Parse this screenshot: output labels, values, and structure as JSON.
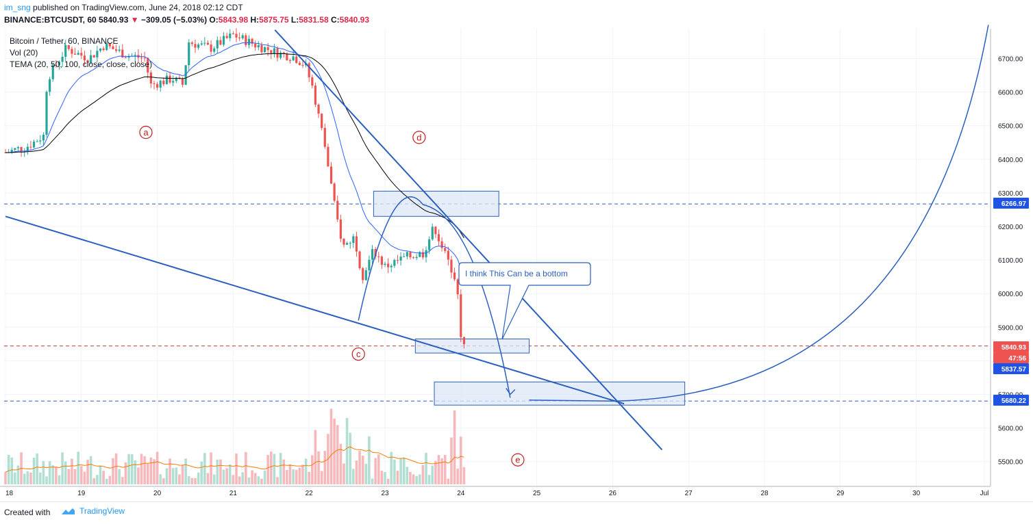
{
  "header": {
    "author": "im_sng",
    "published_text": "published on TradingView.com, June 24, 2018 02:12 CDT",
    "symbol": "BINANCE:BTCUSDT, 60",
    "last": "5840.93",
    "change_arrow": "▼",
    "change": "−309.05 (−5.03%)",
    "o_label": "O:",
    "o_value": "5843.98",
    "h_label": "H:",
    "h_value": "5875.75",
    "l_label": "L:",
    "l_value": "5831.58",
    "c_label": "C:",
    "c_value": "5840.93"
  },
  "legend": {
    "series_title": "Bitcoin / Tether, 60, BINANCE",
    "volume": "Vol (20)",
    "tema": "TEMA (20, 50, 100, close, close, close)"
  },
  "footer": {
    "created_with": "Created with",
    "brand": "TradingView",
    "brand_icon": "tradingview-cloud-icon"
  },
  "annotations": {
    "callout": "I think This Can be a bottom",
    "labels": [
      "a",
      "c",
      "d",
      "e"
    ]
  },
  "colors": {
    "up": "#26a69a",
    "down": "#ef5350",
    "vol_up": "#b2dfd3",
    "vol_down": "#f7b8bc",
    "tema_fast": "#2962ff",
    "tema_slow": "#000000",
    "vol_ma": "#f57c00",
    "drawing": "#2a5ebf",
    "box_fill": "#dce7f7",
    "price_badge": "#1e53e5",
    "last_badge": "#ef5350",
    "label_red": "#c01c1c"
  },
  "chart_data": {
    "type": "candlestick",
    "x_tick_labels": [
      "18",
      "19",
      "20",
      "21",
      "22",
      "23",
      "24",
      "25",
      "26",
      "27",
      "28",
      "29",
      "30",
      "Jul"
    ],
    "y_tick_labels": [
      "6700.00",
      "6600.00",
      "6500.00",
      "6400.00",
      "6300.00",
      "6200.00",
      "6100.00",
      "6000.00",
      "5900.00",
      "5800.00",
      "5700.00",
      "5600.00",
      "5500.00"
    ],
    "ylim": [
      5450,
      6770
    ],
    "price_badges": [
      {
        "value": "6266.97",
        "kind": "level"
      },
      {
        "value": "5840.93",
        "kind": "last"
      },
      {
        "value": "47:56",
        "kind": "countdown"
      },
      {
        "value": "5837.57",
        "kind": "level"
      },
      {
        "value": "5680.22",
        "kind": "level"
      }
    ],
    "level_lines": [
      6266.97,
      5843.98,
      5680.22
    ],
    "candle_anchors": [
      {
        "day": 18.0,
        "price": 6420
      },
      {
        "day": 18.3,
        "price": 6440
      },
      {
        "day": 18.5,
        "price": 6470
      },
      {
        "day": 18.55,
        "price": 6640
      },
      {
        "day": 18.8,
        "price": 6730
      },
      {
        "day": 19.1,
        "price": 6700
      },
      {
        "day": 19.3,
        "price": 6740
      },
      {
        "day": 19.6,
        "price": 6710
      },
      {
        "day": 19.85,
        "price": 6700
      },
      {
        "day": 19.9,
        "price": 6620
      },
      {
        "day": 20.2,
        "price": 6640
      },
      {
        "day": 20.35,
        "price": 6620
      },
      {
        "day": 20.4,
        "price": 6750
      },
      {
        "day": 20.7,
        "price": 6730
      },
      {
        "day": 21.0,
        "price": 6770
      },
      {
        "day": 21.3,
        "price": 6740
      },
      {
        "day": 21.6,
        "price": 6715
      },
      {
        "day": 21.8,
        "price": 6705
      },
      {
        "day": 21.95,
        "price": 6680
      },
      {
        "day": 22.05,
        "price": 6610
      },
      {
        "day": 22.2,
        "price": 6450
      },
      {
        "day": 22.35,
        "price": 6240
      },
      {
        "day": 22.45,
        "price": 6140
      },
      {
        "day": 22.6,
        "price": 6170
      },
      {
        "day": 22.7,
        "price": 6050
      },
      {
        "day": 22.85,
        "price": 6130
      },
      {
        "day": 23.0,
        "price": 6080
      },
      {
        "day": 23.3,
        "price": 6110
      },
      {
        "day": 23.5,
        "price": 6120
      },
      {
        "day": 23.65,
        "price": 6200
      },
      {
        "day": 23.8,
        "price": 6110
      },
      {
        "day": 23.95,
        "price": 6040
      },
      {
        "day": 24.0,
        "price": 5860
      },
      {
        "day": 24.05,
        "price": 5841
      }
    ],
    "series": [
      {
        "name": "TEMA (20, 50, 100, close, close, close)",
        "role": "tema-fast"
      },
      {
        "name": "TEMA (20, 50, 100, close, close, close)",
        "role": "tema-slow"
      },
      {
        "name": "Vol (20)",
        "role": "volume"
      }
    ]
  }
}
